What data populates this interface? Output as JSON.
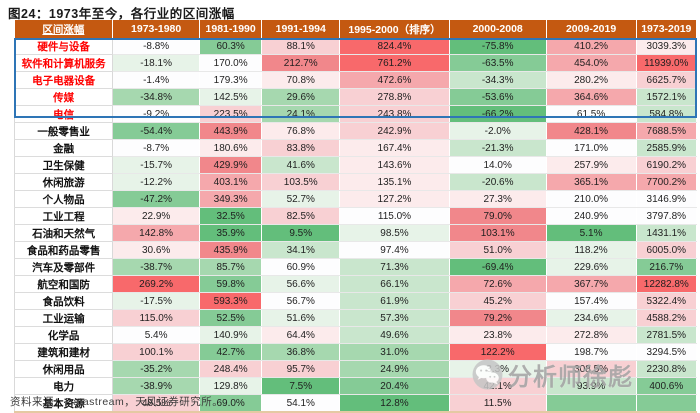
{
  "title": "图24：1973年至今，各行业的区间涨幅",
  "footer": {
    "text": "资料来源：Datastream，天风证券研究所。"
  },
  "watermark": {
    "text": "分析师徐彪",
    "icon": "wechat-icon"
  },
  "colors": {
    "header_bg": "#c45911",
    "header_text": "#ffffff",
    "highlight_border": "#2e75b6",
    "highlight_label_text": "#ff0000",
    "table_bottom_border": "#e5c9a3",
    "palette": {
      "G5": "#63be7b",
      "G4": "#85cb96",
      "G3": "#a6d8af",
      "G2": "#c9e6cd",
      "G1": "#e7f3e8",
      "W": "#fdfdfe",
      "P1": "#fcebec",
      "P2": "#f8d0d3",
      "P3": "#f5a8ac",
      "P4": "#f1878b",
      "P5": "#f8696b"
    }
  },
  "chart_data": {
    "type": "heatmap-table",
    "title": "图24：1973年至今，各行业的区间涨幅",
    "legend": "green = low/negative return within column, red = high return within column; rows 1-5 highlighted with blue box and red labels",
    "columns": [
      "区间涨幅",
      "1973-1980",
      "1981-1990",
      "1991-1994",
      "1995-2000（排序）",
      "2000-2008",
      "2009-2019",
      "1973-2019"
    ],
    "col_widths_pct": [
      14.5,
      12.7,
      9.1,
      11.4,
      16.1,
      14.2,
      13.2,
      8.8
    ],
    "rows": [
      {
        "label": "硬件与设备",
        "highlight": true,
        "cells": [
          [
            "-8.8%",
            "W"
          ],
          [
            "60.3%",
            "G4"
          ],
          [
            "88.1%",
            "P2"
          ],
          [
            "824.4%",
            "P5"
          ],
          [
            "-75.8%",
            "G5"
          ],
          [
            "410.2%",
            "P3"
          ],
          [
            "3039.3%",
            "P1"
          ]
        ]
      },
      {
        "label": "软件和计算机服务",
        "highlight": true,
        "cells": [
          [
            "-18.1%",
            "G1"
          ],
          [
            "170.0%",
            "W"
          ],
          [
            "212.7%",
            "P4"
          ],
          [
            "761.2%",
            "P5"
          ],
          [
            "-63.5%",
            "G4"
          ],
          [
            "454.0%",
            "P3"
          ],
          [
            "11939.0%",
            "P5"
          ]
        ]
      },
      {
        "label": "电子电器设备",
        "highlight": true,
        "cells": [
          [
            "-1.4%",
            "W"
          ],
          [
            "179.3%",
            "W"
          ],
          [
            "70.8%",
            "P1"
          ],
          [
            "472.6%",
            "P3"
          ],
          [
            "-34.3%",
            "G2"
          ],
          [
            "280.2%",
            "P1"
          ],
          [
            "6625.7%",
            "P2"
          ]
        ]
      },
      {
        "label": "传媒",
        "highlight": true,
        "cells": [
          [
            "-34.8%",
            "G3"
          ],
          [
            "142.5%",
            "G1"
          ],
          [
            "29.6%",
            "G3"
          ],
          [
            "278.8%",
            "P2"
          ],
          [
            "-53.6%",
            "G4"
          ],
          [
            "364.6%",
            "P3"
          ],
          [
            "1572.1%",
            "G2"
          ]
        ]
      },
      {
        "label": "电信",
        "highlight": true,
        "cells": [
          [
            "-9.2%",
            "W"
          ],
          [
            "223.5%",
            "P2"
          ],
          [
            "24.1%",
            "G3"
          ],
          [
            "243.8%",
            "P2"
          ],
          [
            "-66.2%",
            "G5"
          ],
          [
            "61.5%",
            "W"
          ],
          [
            "584.8%",
            "G2"
          ]
        ]
      },
      {
        "label": "一般零售业",
        "highlight": false,
        "cells": [
          [
            "-54.4%",
            "G4"
          ],
          [
            "443.9%",
            "P4"
          ],
          [
            "76.8%",
            "P1"
          ],
          [
            "242.9%",
            "P2"
          ],
          [
            "-2.0%",
            "G1"
          ],
          [
            "428.1%",
            "P4"
          ],
          [
            "7688.5%",
            "P3"
          ]
        ]
      },
      {
        "label": "金融",
        "highlight": false,
        "cells": [
          [
            "-8.7%",
            "W"
          ],
          [
            "180.6%",
            "P1"
          ],
          [
            "83.8%",
            "P2"
          ],
          [
            "167.4%",
            "P1"
          ],
          [
            "-21.3%",
            "G2"
          ],
          [
            "171.0%",
            "W"
          ],
          [
            "2585.9%",
            "G2"
          ]
        ]
      },
      {
        "label": "卫生保健",
        "highlight": false,
        "cells": [
          [
            "-15.7%",
            "G1"
          ],
          [
            "429.9%",
            "P4"
          ],
          [
            "41.6%",
            "G2"
          ],
          [
            "143.6%",
            "P1"
          ],
          [
            "14.0%",
            "W"
          ],
          [
            "257.9%",
            "P1"
          ],
          [
            "6190.2%",
            "P2"
          ]
        ]
      },
      {
        "label": "休闲旅游",
        "highlight": false,
        "cells": [
          [
            "-12.2%",
            "G1"
          ],
          [
            "403.1%",
            "P3"
          ],
          [
            "103.5%",
            "P2"
          ],
          [
            "135.1%",
            "P1"
          ],
          [
            "-20.6%",
            "G2"
          ],
          [
            "365.1%",
            "P3"
          ],
          [
            "7700.2%",
            "P3"
          ]
        ]
      },
      {
        "label": "个人物品",
        "highlight": false,
        "cells": [
          [
            "-47.2%",
            "G4"
          ],
          [
            "349.3%",
            "P3"
          ],
          [
            "52.7%",
            "G1"
          ],
          [
            "127.2%",
            "P1"
          ],
          [
            "27.3%",
            "P1"
          ],
          [
            "210.0%",
            "W"
          ],
          [
            "3146.9%",
            "W"
          ]
        ]
      },
      {
        "label": "工业工程",
        "highlight": false,
        "cells": [
          [
            "22.9%",
            "P1"
          ],
          [
            "32.5%",
            "G5"
          ],
          [
            "82.5%",
            "P2"
          ],
          [
            "115.0%",
            "W"
          ],
          [
            "79.0%",
            "P4"
          ],
          [
            "240.9%",
            "W"
          ],
          [
            "3797.8%",
            "W"
          ]
        ]
      },
      {
        "label": "石油和天然气",
        "highlight": false,
        "cells": [
          [
            "142.8%",
            "P3"
          ],
          [
            "35.9%",
            "G5"
          ],
          [
            "9.5%",
            "G5"
          ],
          [
            "98.5%",
            "G1"
          ],
          [
            "103.1%",
            "P4"
          ],
          [
            "5.1%",
            "G5"
          ],
          [
            "1431.1%",
            "G2"
          ]
        ]
      },
      {
        "label": "食品和药品零售",
        "highlight": false,
        "cells": [
          [
            "30.6%",
            "P1"
          ],
          [
            "435.9%",
            "P4"
          ],
          [
            "34.1%",
            "G2"
          ],
          [
            "97.4%",
            "W"
          ],
          [
            "51.0%",
            "P2"
          ],
          [
            "118.2%",
            "G1"
          ],
          [
            "6005.0%",
            "P2"
          ]
        ]
      },
      {
        "label": "汽车及零部件",
        "highlight": false,
        "cells": [
          [
            "-38.7%",
            "G3"
          ],
          [
            "85.7%",
            "G3"
          ],
          [
            "60.9%",
            "W"
          ],
          [
            "71.3%",
            "G2"
          ],
          [
            "-69.4%",
            "G5"
          ],
          [
            "229.6%",
            "G1"
          ],
          [
            "216.7%",
            "G4"
          ]
        ]
      },
      {
        "label": "航空和国防",
        "highlight": false,
        "cells": [
          [
            "269.2%",
            "P5"
          ],
          [
            "59.8%",
            "G4"
          ],
          [
            "56.6%",
            "G1"
          ],
          [
            "66.1%",
            "G2"
          ],
          [
            "72.6%",
            "P3"
          ],
          [
            "367.7%",
            "P3"
          ],
          [
            "12282.8%",
            "P5"
          ]
        ]
      },
      {
        "label": "食品饮料",
        "highlight": false,
        "cells": [
          [
            "-17.5%",
            "G1"
          ],
          [
            "593.3%",
            "P5"
          ],
          [
            "56.7%",
            "W"
          ],
          [
            "61.9%",
            "G2"
          ],
          [
            "45.2%",
            "P2"
          ],
          [
            "157.4%",
            "W"
          ],
          [
            "5322.4%",
            "P2"
          ]
        ]
      },
      {
        "label": "工业运输",
        "highlight": false,
        "cells": [
          [
            "115.0%",
            "P2"
          ],
          [
            "52.5%",
            "G4"
          ],
          [
            "51.6%",
            "G1"
          ],
          [
            "57.3%",
            "G2"
          ],
          [
            "79.2%",
            "P4"
          ],
          [
            "234.6%",
            "G1"
          ],
          [
            "4588.2%",
            "P2"
          ]
        ]
      },
      {
        "label": "化学品",
        "highlight": false,
        "cells": [
          [
            "5.4%",
            "W"
          ],
          [
            "140.9%",
            "G1"
          ],
          [
            "64.4%",
            "P1"
          ],
          [
            "49.6%",
            "G2"
          ],
          [
            "23.8%",
            "P1"
          ],
          [
            "272.8%",
            "P1"
          ],
          [
            "2781.5%",
            "G2"
          ]
        ]
      },
      {
        "label": "建筑和建材",
        "highlight": false,
        "cells": [
          [
            "100.1%",
            "P2"
          ],
          [
            "42.7%",
            "G4"
          ],
          [
            "36.8%",
            "G3"
          ],
          [
            "31.0%",
            "G3"
          ],
          [
            "122.2%",
            "P5"
          ],
          [
            "198.7%",
            "W"
          ],
          [
            "3294.5%",
            "W"
          ]
        ]
      },
      {
        "label": "休闲用品",
        "highlight": false,
        "cells": [
          [
            "-35.2%",
            "G3"
          ],
          [
            "248.4%",
            "P2"
          ],
          [
            "95.7%",
            "P2"
          ],
          [
            "24.9%",
            "G3"
          ],
          [
            "3.3%",
            "G1"
          ],
          [
            "308.5%",
            "P2"
          ],
          [
            "2230.8%",
            "G2"
          ]
        ]
      },
      {
        "label": "电力",
        "highlight": false,
        "cells": [
          [
            "-38.9%",
            "G3"
          ],
          [
            "129.8%",
            "G1"
          ],
          [
            "7.5%",
            "G5"
          ],
          [
            "20.4%",
            "G4"
          ],
          [
            "42.1%",
            "P2"
          ],
          [
            "93.9%",
            "G2"
          ],
          [
            "400.6%",
            "G4"
          ]
        ]
      },
      {
        "label": "基本资源",
        "highlight": false,
        "cells": [
          [
            "48.5%",
            "P2"
          ],
          [
            "69.0%",
            "G4"
          ],
          [
            "54.1%",
            "W"
          ],
          [
            "12.8%",
            "G5"
          ],
          [
            "11.5%",
            "P2"
          ],
          [
            "",
            "G4"
          ],
          [
            "",
            "G4"
          ]
        ]
      }
    ]
  }
}
